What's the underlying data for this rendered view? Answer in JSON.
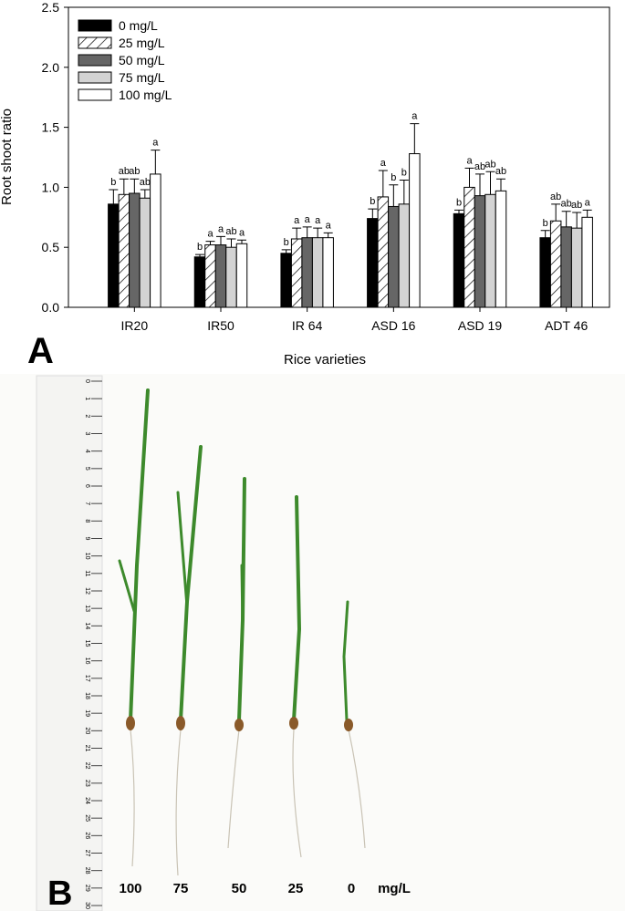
{
  "chart_data": {
    "type": "bar",
    "y_label": "Root shoot ratio",
    "x_label": "Rice varieties",
    "categories": [
      "IR20",
      "IR50",
      "IR 64",
      "ASD 16",
      "ASD 19",
      "ADT 46"
    ],
    "ylim": [
      0,
      2.5
    ],
    "yticks": [
      {
        "value": 0,
        "label": "0.0"
      },
      0.5,
      {
        "value": 1,
        "label": "1.0"
      },
      1.5,
      {
        "value": 2,
        "label": "2.0"
      },
      2.5
    ],
    "series": [
      {
        "name": "0 mg/L",
        "color": "#000000",
        "values": [
          0.86,
          0.42,
          0.45,
          0.74,
          0.78,
          0.58
        ],
        "errors": [
          0.12,
          0.02,
          0.03,
          0.08,
          0.03,
          0.06
        ],
        "letters": [
          "b",
          "b",
          "b",
          "b",
          "b",
          "b"
        ]
      },
      {
        "name": "25 mg/L",
        "color": "#ffffff",
        "hatch": true,
        "values": [
          0.94,
          0.52,
          0.57,
          0.92,
          1.0,
          0.72
        ],
        "errors": [
          0.13,
          0.03,
          0.09,
          0.22,
          0.16,
          0.14
        ],
        "letters": [
          "ab",
          "a",
          "a",
          "a",
          "a",
          "ab"
        ]
      },
      {
        "name": "50 mg/L",
        "color": "#666666",
        "values": [
          0.95,
          0.52,
          0.58,
          0.84,
          0.93,
          0.67
        ],
        "errors": [
          0.12,
          0.07,
          0.09,
          0.18,
          0.18,
          0.13
        ],
        "letters": [
          "ab",
          "a",
          "a",
          "b",
          "ab",
          "ab"
        ]
      },
      {
        "name": "75 mg/L",
        "color": "#d3d3d3",
        "values": [
          0.91,
          0.5,
          0.58,
          0.86,
          0.94,
          0.66
        ],
        "errors": [
          0.07,
          0.07,
          0.08,
          0.2,
          0.19,
          0.13
        ],
        "letters": [
          "ab",
          "ab",
          "a",
          "b",
          "ab",
          "ab"
        ]
      },
      {
        "name": "100 mg/L",
        "color": "#ffffff",
        "values": [
          1.11,
          0.53,
          0.58,
          1.28,
          0.97,
          0.75
        ],
        "errors": [
          0.2,
          0.03,
          0.04,
          0.25,
          0.1,
          0.06
        ],
        "letters": [
          "a",
          "a",
          "a",
          "a",
          "ab",
          "a"
        ]
      }
    ]
  },
  "panel_labels": [
    "A",
    "B"
  ],
  "photo": {
    "concentration_labels": [
      "100",
      "75",
      "50",
      "25",
      "0"
    ],
    "unit": "mg/L",
    "ruler_cm": [
      "0",
      "1",
      "2",
      "3",
      "4",
      "5",
      "6",
      "7",
      "8",
      "9",
      "10",
      "11",
      "12",
      "13",
      "14",
      "15",
      "16",
      "17",
      "18",
      "19",
      "20",
      "21",
      "22",
      "23",
      "24",
      "25",
      "26",
      "27",
      "28",
      "29",
      "30"
    ]
  }
}
